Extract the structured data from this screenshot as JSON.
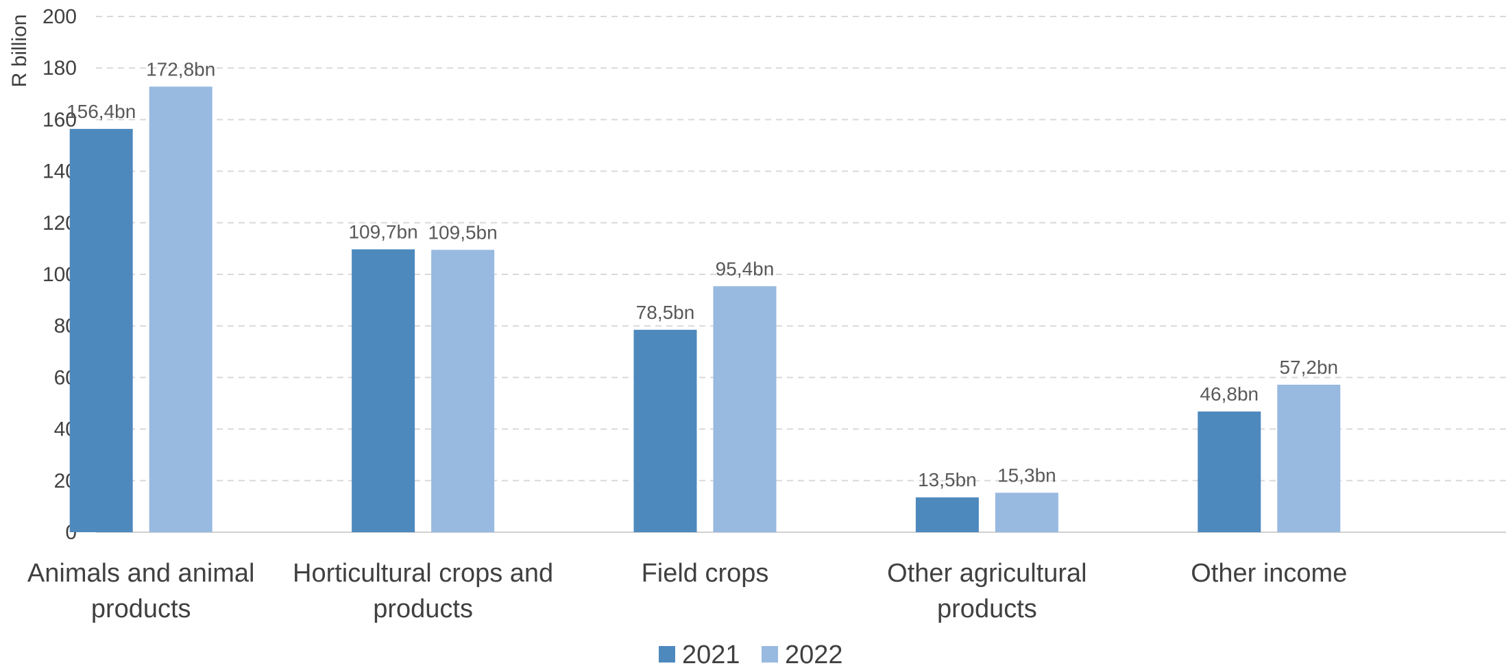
{
  "chart_data": {
    "type": "bar",
    "title": "",
    "xlabel": "",
    "ylabel": "R billion",
    "ylim": [
      0,
      200
    ],
    "yticks": [
      0,
      20,
      40,
      60,
      80,
      100,
      120,
      140,
      160,
      180,
      200
    ],
    "grid": true,
    "legend_position": "bottom",
    "categories": [
      "Animals and animal products",
      "Horticultural crops and products",
      "Field crops",
      "Other agricultural products",
      "Other income"
    ],
    "category_label_lines": [
      [
        "Animals and animal",
        "products"
      ],
      [
        "Horticultural crops and",
        "products"
      ],
      [
        "Field crops"
      ],
      [
        "Other agricultural",
        "products"
      ],
      [
        "Other income"
      ]
    ],
    "series": [
      {
        "name": "2021",
        "color": "#4E89BE",
        "values": [
          156.4,
          109.7,
          78.5,
          13.5,
          46.8
        ],
        "labels": [
          "156,4bn",
          "109,7bn",
          "78,5bn",
          "13,5bn",
          "46,8bn"
        ]
      },
      {
        "name": "2022",
        "color": "#98B9E0",
        "values": [
          172.8,
          109.5,
          95.4,
          15.3,
          57.2
        ],
        "labels": [
          "172,8bn",
          "109,5bn",
          "95,4bn",
          "15,3bn",
          "57,2bn"
        ]
      }
    ]
  }
}
